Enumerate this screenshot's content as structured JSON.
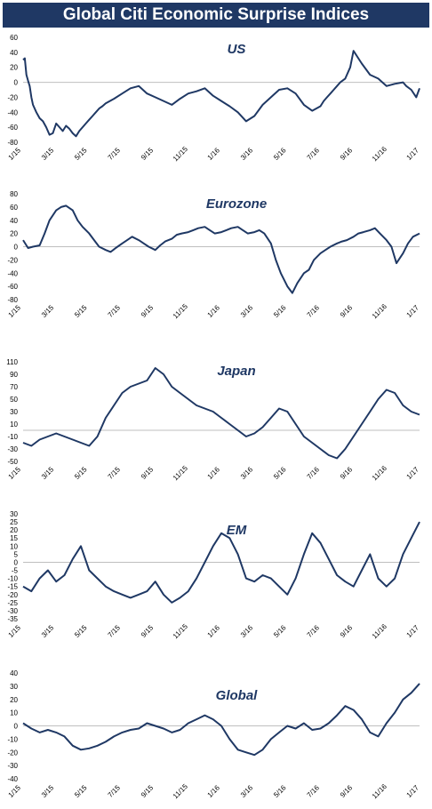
{
  "header": {
    "title": "Global Citi Economic Surprise Indices"
  },
  "colors": {
    "banner": "#1f3864",
    "line": "#1f3864",
    "title_text": "#1f3864"
  },
  "chart_data": [
    {
      "type": "line",
      "title": "US",
      "x_labels": [
        "1/15",
        "3/15",
        "5/15",
        "7/15",
        "9/15",
        "11/15",
        "1/16",
        "3/16",
        "5/16",
        "7/16",
        "9/16",
        "11/16",
        "1/17"
      ],
      "y_ticks": [
        60,
        40,
        20,
        0,
        -20,
        -40,
        -60,
        -80
      ],
      "ylim": [
        -80,
        60
      ],
      "x": [
        0,
        0.1,
        0.2,
        0.3,
        0.4,
        0.5,
        0.6,
        0.8,
        1,
        1.2,
        1.4,
        1.6,
        1.8,
        2,
        2.2,
        2.4,
        2.6,
        2.8,
        3,
        3.2,
        3.4,
        3.6,
        3.8,
        4,
        4.2,
        4.4,
        4.6,
        4.8,
        5,
        5.5,
        6,
        6.5,
        7,
        7.5,
        8,
        8.5,
        9,
        9.5,
        10,
        10.5,
        11,
        11.5,
        12,
        12.5,
        13,
        13.5,
        14,
        14.5,
        15,
        15.5,
        16,
        16.5,
        17,
        17.5,
        18,
        18.2,
        18.4,
        18.6,
        18.8,
        19,
        19.2,
        19.5,
        19.8,
        20,
        20.5,
        21,
        21.5,
        22,
        22.5,
        23,
        23.2,
        23.5,
        23.8,
        24
      ],
      "values": [
        30,
        32,
        10,
        2,
        -5,
        -20,
        -30,
        -40,
        -48,
        -52,
        -60,
        -70,
        -68,
        -55,
        -60,
        -65,
        -58,
        -62,
        -68,
        -72,
        -65,
        -60,
        -55,
        -50,
        -45,
        -40,
        -35,
        -32,
        -28,
        -22,
        -15,
        -8,
        -5,
        -15,
        -20,
        -25,
        -30,
        -22,
        -15,
        -12,
        -8,
        -18,
        -25,
        -32,
        -40,
        -52,
        -45,
        -30,
        -20,
        -10,
        -8,
        -15,
        -30,
        -38,
        -32,
        -25,
        -20,
        -15,
        -10,
        -5,
        0,
        5,
        20,
        42,
        25,
        10,
        5,
        -5,
        -2,
        0,
        -5,
        -10,
        -20,
        -8
      ]
    },
    {
      "type": "line",
      "title": "Eurozone",
      "x_labels": [
        "1/15",
        "3/15",
        "5/15",
        "7/15",
        "9/15",
        "11/15",
        "1/16",
        "3/16",
        "5/16",
        "7/16",
        "9/16",
        "11/16",
        "1/17"
      ],
      "y_ticks": [
        80,
        60,
        40,
        20,
        0,
        -20,
        -40,
        -60,
        -80
      ],
      "ylim": [
        -80,
        80
      ],
      "x": [
        0,
        0.3,
        0.6,
        1,
        1.3,
        1.6,
        2,
        2.3,
        2.6,
        3,
        3.3,
        3.6,
        4,
        4.3,
        4.6,
        5,
        5.3,
        5.6,
        6,
        6.3,
        6.6,
        7,
        7.3,
        7.6,
        8,
        8.3,
        8.6,
        9,
        9.3,
        9.6,
        10,
        10.3,
        10.6,
        11,
        11.3,
        11.6,
        12,
        12.3,
        12.6,
        13,
        13.3,
        13.6,
        14,
        14.3,
        14.6,
        15,
        15.3,
        15.6,
        16,
        16.3,
        16.6,
        17,
        17.3,
        17.6,
        18,
        18.3,
        18.6,
        19,
        19.3,
        19.6,
        20,
        20.3,
        20.6,
        21,
        21.3,
        21.6,
        22,
        22.3,
        22.6,
        23,
        23.3,
        23.6,
        24
      ],
      "values": [
        10,
        -2,
        0,
        2,
        20,
        40,
        55,
        60,
        62,
        55,
        40,
        30,
        20,
        10,
        0,
        -5,
        -8,
        -2,
        5,
        10,
        15,
        10,
        5,
        0,
        -5,
        2,
        8,
        12,
        18,
        20,
        22,
        25,
        28,
        30,
        25,
        20,
        22,
        25,
        28,
        30,
        25,
        20,
        22,
        25,
        20,
        5,
        -20,
        -40,
        -60,
        -70,
        -55,
        -40,
        -35,
        -20,
        -10,
        -5,
        0,
        5,
        8,
        10,
        15,
        20,
        22,
        25,
        28,
        20,
        10,
        0,
        -25,
        -10,
        5,
        15,
        20
      ]
    },
    {
      "type": "line",
      "title": "Japan",
      "x_labels": [
        "1/15",
        "3/15",
        "5/15",
        "7/15",
        "9/15",
        "11/15",
        "1/16",
        "3/16",
        "5/16",
        "7/16",
        "9/16",
        "11/16",
        "1/17"
      ],
      "y_ticks": [
        110,
        90,
        70,
        50,
        30,
        10,
        -10,
        -30,
        -50
      ],
      "ylim": [
        -50,
        110
      ],
      "x": [
        0,
        0.5,
        1,
        1.5,
        2,
        2.5,
        3,
        3.5,
        4,
        4.5,
        5,
        5.5,
        6,
        6.5,
        7,
        7.5,
        8,
        8.5,
        9,
        9.5,
        10,
        10.5,
        11,
        11.5,
        12,
        12.5,
        13,
        13.5,
        14,
        14.5,
        15,
        15.5,
        16,
        16.5,
        17,
        17.5,
        18,
        18.5,
        19,
        19.5,
        20,
        20.5,
        21,
        21.5,
        22,
        22.5,
        23,
        23.5,
        24
      ],
      "values": [
        -20,
        -25,
        -15,
        -10,
        -5,
        -10,
        -15,
        -20,
        -25,
        -10,
        20,
        40,
        60,
        70,
        75,
        80,
        100,
        90,
        70,
        60,
        50,
        40,
        35,
        30,
        20,
        10,
        0,
        -10,
        -5,
        5,
        20,
        35,
        30,
        10,
        -10,
        -20,
        -30,
        -40,
        -45,
        -30,
        -10,
        10,
        30,
        50,
        65,
        60,
        40,
        30,
        25
      ]
    },
    {
      "type": "line",
      "title": "EM",
      "x_labels": [
        "1/15",
        "3/15",
        "5/15",
        "7/15",
        "9/15",
        "11/15",
        "1/16",
        "3/16",
        "5/16",
        "7/16",
        "9/16",
        "11/16",
        "1/17"
      ],
      "y_ticks": [
        30,
        25,
        20,
        15,
        10,
        5,
        0,
        -5,
        -10,
        -15,
        -20,
        -25,
        -30,
        -35
      ],
      "ylim": [
        -35,
        30
      ],
      "x": [
        0,
        0.5,
        1,
        1.5,
        2,
        2.5,
        3,
        3.5,
        4,
        4.5,
        5,
        5.5,
        6,
        6.5,
        7,
        7.5,
        8,
        8.5,
        9,
        9.5,
        10,
        10.5,
        11,
        11.5,
        12,
        12.5,
        13,
        13.5,
        14,
        14.5,
        15,
        15.5,
        16,
        16.5,
        17,
        17.5,
        18,
        18.5,
        19,
        19.5,
        20,
        20.5,
        21,
        21.5,
        22,
        22.5,
        23,
        23.5,
        24
      ],
      "values": [
        -15,
        -18,
        -10,
        -5,
        -12,
        -8,
        2,
        10,
        -5,
        -10,
        -15,
        -18,
        -20,
        -22,
        -20,
        -18,
        -12,
        -20,
        -25,
        -22,
        -18,
        -10,
        0,
        10,
        18,
        15,
        5,
        -10,
        -12,
        -8,
        -10,
        -15,
        -20,
        -10,
        5,
        18,
        12,
        2,
        -8,
        -12,
        -15,
        -5,
        5,
        -10,
        -15,
        -10,
        5,
        15,
        25
      ]
    },
    {
      "type": "line",
      "title": "Global",
      "x_labels": [
        "1/15",
        "3/15",
        "5/15",
        "7/15",
        "9/15",
        "11/15",
        "1/16",
        "3/16",
        "5/16",
        "7/16",
        "9/16",
        "11/16",
        "1/17"
      ],
      "y_ticks": [
        40,
        30,
        20,
        10,
        0,
        -10,
        -20,
        -30,
        -40
      ],
      "ylim": [
        -40,
        40
      ],
      "x": [
        0,
        0.5,
        1,
        1.5,
        2,
        2.5,
        3,
        3.5,
        4,
        4.5,
        5,
        5.5,
        6,
        6.5,
        7,
        7.5,
        8,
        8.5,
        9,
        9.5,
        10,
        10.5,
        11,
        11.5,
        12,
        12.5,
        13,
        13.5,
        14,
        14.5,
        15,
        15.5,
        16,
        16.5,
        17,
        17.5,
        18,
        18.5,
        19,
        19.5,
        20,
        20.5,
        21,
        21.5,
        22,
        22.5,
        23,
        23.5,
        24
      ],
      "values": [
        2,
        -2,
        -5,
        -3,
        -5,
        -8,
        -15,
        -18,
        -17,
        -15,
        -12,
        -8,
        -5,
        -3,
        -2,
        2,
        0,
        -2,
        -5,
        -3,
        2,
        5,
        8,
        5,
        0,
        -10,
        -18,
        -20,
        -22,
        -18,
        -10,
        -5,
        0,
        -2,
        2,
        -3,
        -2,
        2,
        8,
        15,
        12,
        5,
        -5,
        -8,
        2,
        10,
        20,
        25,
        32
      ]
    }
  ]
}
